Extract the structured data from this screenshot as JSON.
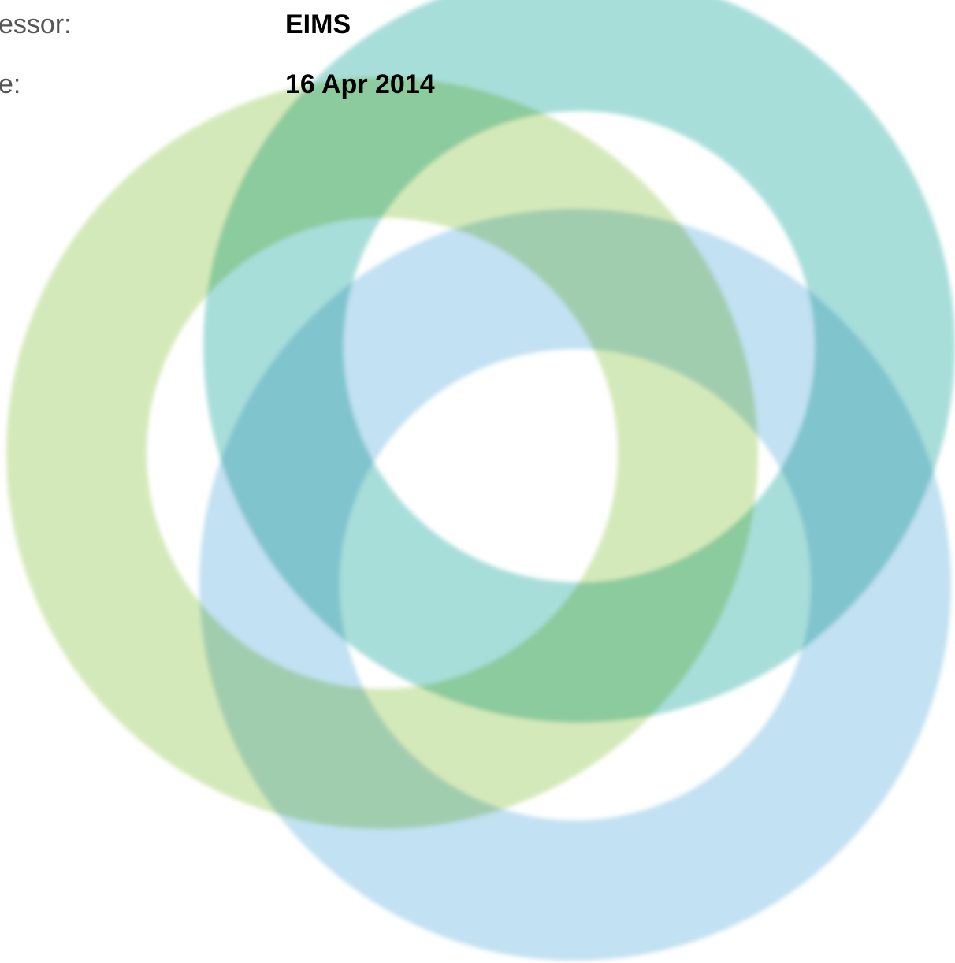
{
  "fields": [
    {
      "label": "essor:",
      "value": "EIMS"
    },
    {
      "label": "e:",
      "value": "16 Apr 2014"
    }
  ]
}
